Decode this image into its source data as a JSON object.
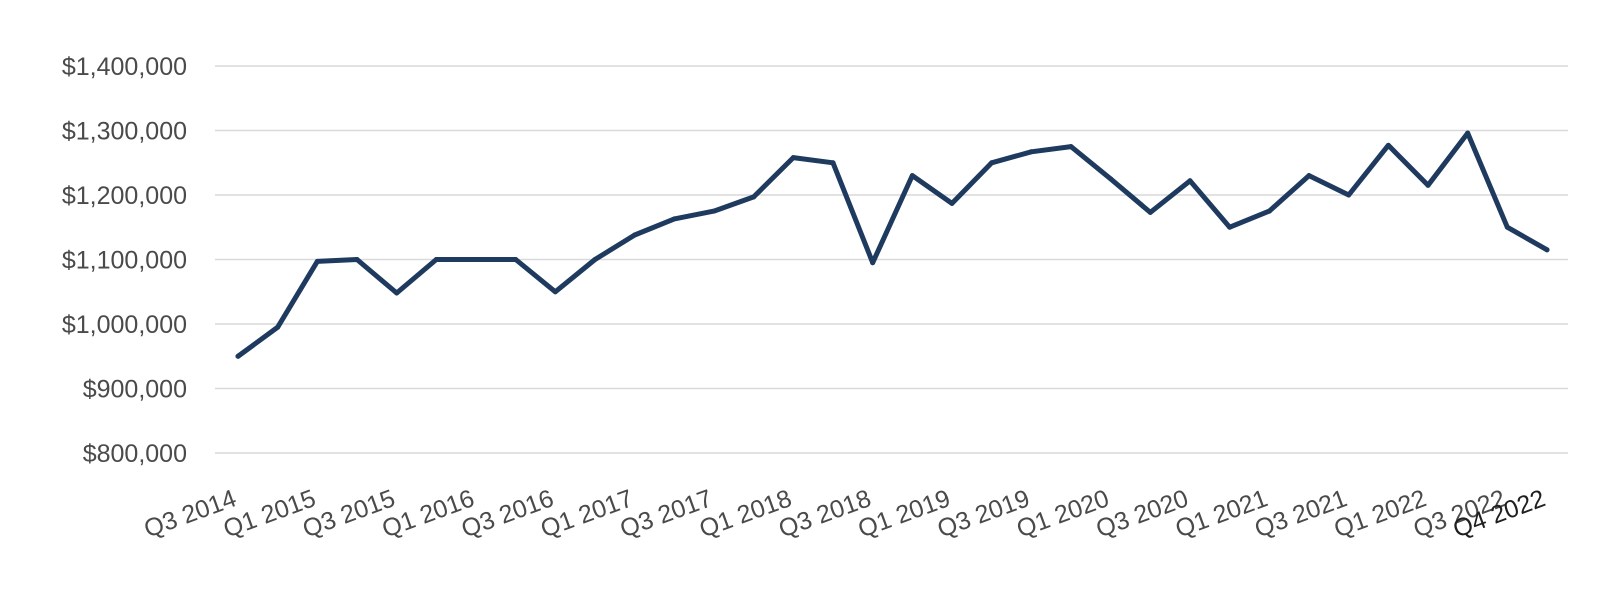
{
  "chart_data": {
    "type": "line",
    "title": "",
    "xlabel": "",
    "ylabel": "",
    "ylim": [
      800000,
      1400000
    ],
    "yticks": [
      800000,
      900000,
      1000000,
      1100000,
      1200000,
      1300000,
      1400000
    ],
    "ytick_labels": [
      "$800,000",
      "$900,000",
      "$1,000,000",
      "$1,100,000",
      "$1,200,000",
      "$1,300,000",
      "$1,400,000"
    ],
    "grid": true,
    "legend": "none",
    "x": [
      "Q3 2014",
      "Q4 2014",
      "Q1 2015",
      "Q2 2015",
      "Q3 2015",
      "Q4 2015",
      "Q1 2016",
      "Q2 2016",
      "Q3 2016",
      "Q4 2016",
      "Q1 2017",
      "Q2 2017",
      "Q3 2017",
      "Q4 2017",
      "Q1 2018",
      "Q2 2018",
      "Q3 2018",
      "Q4 2018",
      "Q1 2019",
      "Q2 2019",
      "Q3 2019",
      "Q4 2019",
      "Q1 2020",
      "Q2 2020",
      "Q3 2020",
      "Q4 2020",
      "Q1 2021",
      "Q2 2021",
      "Q3 2021",
      "Q4 2021",
      "Q1 2022",
      "Q2 2022",
      "Q3 2022",
      "Q4 2022"
    ],
    "xtick_labels": [
      {
        "text": "Q3 2014",
        "x": "Q3 2014"
      },
      {
        "text": "Q1 2015",
        "x": "Q1 2015"
      },
      {
        "text": "Q3 2015",
        "x": "Q3 2015"
      },
      {
        "text": "Q1 2016",
        "x": "Q1 2016"
      },
      {
        "text": "Q3 2016",
        "x": "Q3 2016"
      },
      {
        "text": "Q1 2017",
        "x": "Q1 2017"
      },
      {
        "text": "Q3 2017",
        "x": "Q3 2017"
      },
      {
        "text": "Q1 2018",
        "x": "Q1 2018"
      },
      {
        "text": "Q3 2018",
        "x": "Q3 2018"
      },
      {
        "text": "Q1 2019",
        "x": "Q1 2019"
      },
      {
        "text": "Q3 2019",
        "x": "Q3 2019"
      },
      {
        "text": "Q1 2020",
        "x": "Q1 2020"
      },
      {
        "text": "Q3 2020",
        "x": "Q3 2020"
      },
      {
        "text": "Q1 2021",
        "x": "Q1 2021"
      },
      {
        "text": "Q3 2021",
        "x": "Q3 2021"
      },
      {
        "text": "Q1 2022",
        "x": "Q1 2022"
      },
      {
        "text": "Q3 2022",
        "x": "Q3 2022"
      },
      {
        "text": "Q4 2022",
        "x": "Q4 2022",
        "emphasis": true
      }
    ],
    "series": [
      {
        "color": "#1f3a5f",
        "values": [
          950000,
          995000,
          1097000,
          1100000,
          1048000,
          1100000,
          1100000,
          1100000,
          1050000,
          1100000,
          1138000,
          1163000,
          1175000,
          1197000,
          1258000,
          1250000,
          1095000,
          1230000,
          1187000,
          1250000,
          1267000,
          1275000,
          1225000,
          1173000,
          1222000,
          1150000,
          1175000,
          1230000,
          1200000,
          1277000,
          1215000,
          1296000,
          1150000,
          1115000
        ]
      }
    ]
  }
}
